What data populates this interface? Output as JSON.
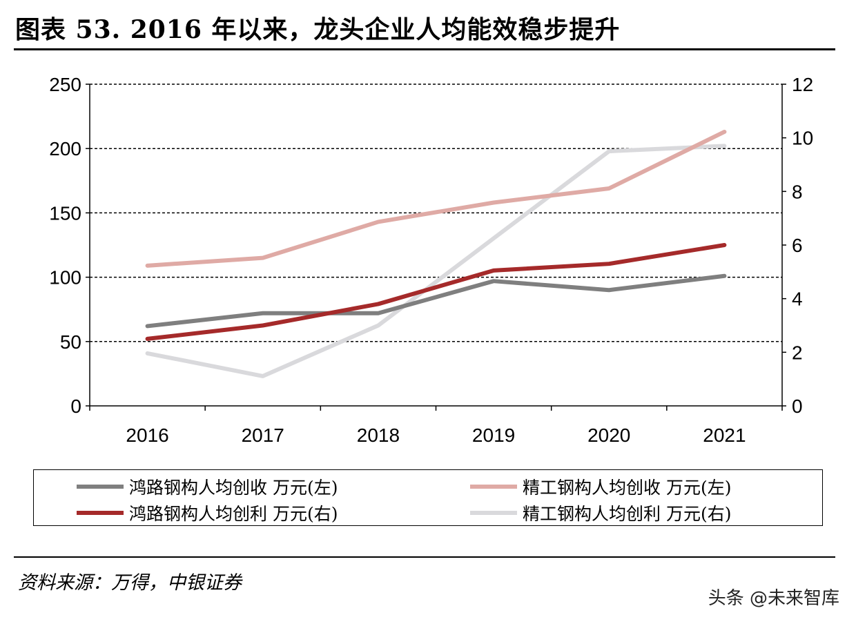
{
  "title": "图表 53. 2016 年以来，龙头企业人均能效稳步提升",
  "source": "资料来源：万得，中银证券",
  "watermark": "头条 @未来智库",
  "chart_data": {
    "type": "line",
    "title": "图表 53. 2016 年以来，龙头企业人均能效稳步提升",
    "categories": [
      "2016",
      "2017",
      "2018",
      "2019",
      "2020",
      "2021"
    ],
    "y_left": {
      "range": [
        0,
        250
      ],
      "ticks": [
        "0",
        "50",
        "100",
        "150",
        "200",
        "250"
      ]
    },
    "y_right": {
      "range": [
        0,
        12
      ],
      "ticks": [
        "0",
        "2",
        "4",
        "6",
        "8",
        "10",
        "12"
      ]
    },
    "grid": "horizontal dashed",
    "legend_position": "bottom",
    "series": [
      {
        "name": "鸿路钢构人均创收 万元(左)",
        "axis": "left",
        "color": "#7f7f7f",
        "values": [
          62,
          72,
          72,
          97,
          90,
          101
        ]
      },
      {
        "name": "精工钢构人均创收 万元(左)",
        "axis": "left",
        "color": "#dfaaa5",
        "values": [
          109,
          115,
          143,
          158,
          169,
          213
        ]
      },
      {
        "name": "鸿路钢构人均创利 万元(右)",
        "axis": "right",
        "color": "#a52a2a",
        "values": [
          2.5,
          3.0,
          3.8,
          5.05,
          5.3,
          6.0
        ]
      },
      {
        "name": "精工钢构人均创利 万元(右)",
        "axis": "right",
        "color": "#d9d9dc",
        "values": [
          1.96,
          1.11,
          3.0,
          6.25,
          9.5,
          9.7
        ]
      }
    ]
  }
}
